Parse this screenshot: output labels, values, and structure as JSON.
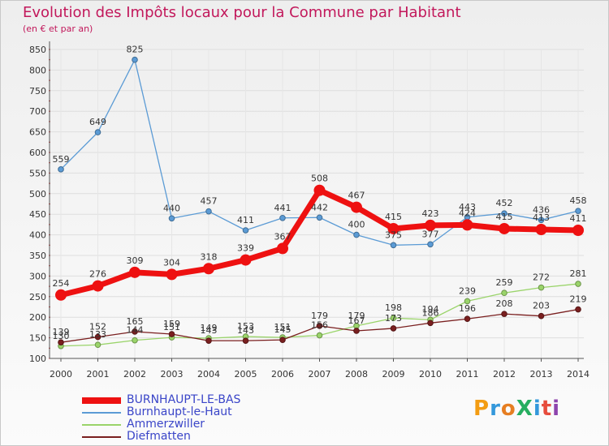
{
  "header": {
    "title": "Evolution des Impôts locaux pour la Commune par Habitant",
    "subtitle": "(en € et par an)"
  },
  "logo": {
    "text": "ProXiti",
    "letters": [
      {
        "ch": "P",
        "color": "#f39c12"
      },
      {
        "ch": "r",
        "color": "#3498db"
      },
      {
        "ch": "o",
        "color": "#e67e22"
      },
      {
        "ch": "X",
        "color": "#27ae60"
      },
      {
        "ch": "i",
        "color": "#3498db"
      },
      {
        "ch": "t",
        "color": "#e74c3c"
      },
      {
        "ch": "i",
        "color": "#8e44ad"
      }
    ]
  },
  "chart_data": {
    "type": "line",
    "title": "Evolution des Impôts locaux pour la Commune par Habitant",
    "subtitle": "(en € et par an)",
    "xlabel": "",
    "ylabel": "",
    "x": [
      "2000",
      "2001",
      "2002",
      "2003",
      "2004",
      "2005",
      "2006",
      "2007",
      "2008",
      "2009",
      "2010",
      "2011",
      "2012",
      "2013",
      "2014"
    ],
    "ylim": [
      100,
      850
    ],
    "yticks": [
      100,
      150,
      200,
      250,
      300,
      350,
      400,
      450,
      500,
      550,
      600,
      650,
      700,
      750,
      800,
      850
    ],
    "grid": true,
    "legend_position": "bottom-left",
    "series": [
      {
        "name": "BURNHAUPT-LE-BAS",
        "color": "#ee1111",
        "emphasis": true,
        "values": [
          254,
          276,
          309,
          304,
          318,
          339,
          367,
          508,
          467,
          415,
          423,
          424,
          415,
          413,
          411
        ],
        "labels": [
          "254",
          "276",
          "309",
          "304",
          "318",
          "339",
          "367",
          "508",
          "467",
          "415",
          "423",
          "424",
          "415",
          "413",
          "411"
        ]
      },
      {
        "name": "Burnhaupt-le-Haut",
        "color": "#5b9bd5",
        "values": [
          559,
          649,
          825,
          440,
          457,
          411,
          441,
          442,
          400,
          375,
          377,
          443,
          452,
          436,
          458
        ],
        "labels": [
          "559",
          "649",
          "825",
          "440",
          "457",
          "411",
          "441",
          "442",
          "400",
          "375",
          "377",
          "443",
          "452",
          "436",
          "458"
        ]
      },
      {
        "name": "Ammerzwiller",
        "color": "#9ad46a",
        "values": [
          130,
          133,
          144,
          151,
          149,
          153,
          151,
          156,
          179,
          198,
          194,
          239,
          259,
          272,
          281
        ],
        "labels": [
          "130",
          "133",
          "144",
          "151",
          "149",
          "153",
          "151",
          "156",
          "179",
          "198",
          "194",
          "239",
          "259",
          "272",
          "281"
        ]
      },
      {
        "name": "Diefmatten",
        "color": "#7a1f1f",
        "values": [
          139,
          152,
          165,
          159,
          143,
          143,
          145,
          179,
          167,
          173,
          186,
          196,
          208,
          203,
          219
        ],
        "labels": [
          "139",
          "152",
          "165",
          "159",
          "143",
          "143",
          "145",
          "179",
          "167",
          "173",
          "186",
          "196",
          "208",
          "203",
          "219"
        ]
      }
    ]
  }
}
